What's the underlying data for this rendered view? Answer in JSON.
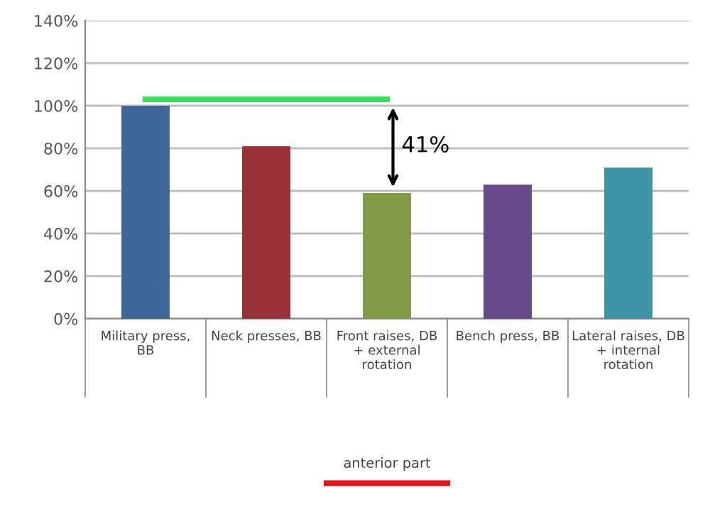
{
  "chart_data": {
    "type": "bar",
    "categories": [
      "Military press,\nBB",
      "Neck presses, BB",
      "Front raises, DB\n+ external\nrotation",
      "Bench press, BB",
      "Lateral raises, DB\n+ internal\nrotation"
    ],
    "series": [
      {
        "colors": [
          "#41669a",
          "#993339",
          "#809a45",
          "#674a8a",
          "#3f94a8"
        ],
        "values": [
          100,
          81,
          59,
          63,
          71
        ]
      },
      {
        "type": "line",
        "color": "#3ddc5c",
        "values": [
          103,
          103,
          103,
          null,
          null
        ]
      }
    ],
    "ylim": [
      0,
      140
    ],
    "yticks": [
      {
        "value": 0,
        "label": "0%"
      },
      {
        "value": 20,
        "label": "20%"
      },
      {
        "value": 40,
        "label": "40%"
      },
      {
        "value": 60,
        "label": "60%"
      },
      {
        "value": 80,
        "label": "80%"
      },
      {
        "value": 100,
        "label": "100%"
      },
      {
        "value": 120,
        "label": "120%"
      },
      {
        "value": 140,
        "label": "140%"
      }
    ],
    "grid": "y",
    "legend": false,
    "annotations": [
      "41%",
      "anterior part"
    ]
  }
}
